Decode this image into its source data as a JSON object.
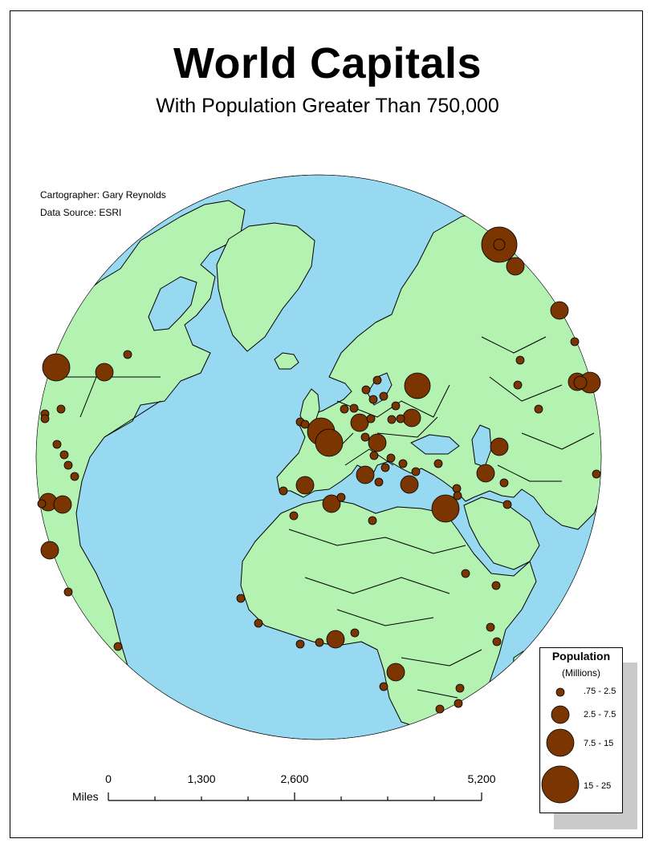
{
  "title": "World Capitals",
  "subtitle": "With Population Greater Than 750,000",
  "credits": {
    "cartographer": "Cartographer: Gary Reynolds",
    "data_source": "Data Source: ESRI"
  },
  "colors": {
    "ocean": "#97d9f0",
    "land": "#b3f2b1",
    "border": "#000000",
    "city": "#7a3500"
  },
  "scale_bar": {
    "unit": "Miles",
    "labels": [
      "0",
      "1,300",
      "2,600",
      "5,200"
    ]
  },
  "legend": {
    "title": "Population",
    "subtitle": "(Millions)",
    "classes": [
      ".75 - 2.5",
      "2.5 - 7.5",
      "7.5 - 15",
      "15 - 25"
    ]
  }
}
